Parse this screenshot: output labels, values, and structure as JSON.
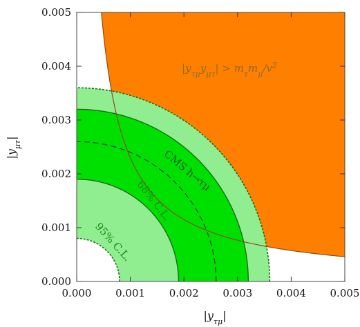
{
  "chart_data": {
    "type": "area",
    "title": "",
    "xlabel": "|y_τμ|",
    "ylabel": "|y_μτ|",
    "xlim": [
      0,
      0.005
    ],
    "ylim": [
      0,
      0.005
    ],
    "x_ticks": [
      "0.000",
      "0.001",
      "0.002",
      "0.003",
      "0.004",
      "0.005"
    ],
    "y_ticks": [
      "0.000",
      "0.001",
      "0.002",
      "0.003",
      "0.004",
      "0.005"
    ],
    "grid": false,
    "regions": [
      {
        "name": "95% C.L.",
        "kind": "annulus",
        "inner_radius": 0.0008,
        "outer_radius": 0.0036,
        "color": "#90ee90",
        "label": "95% C.L."
      },
      {
        "name": "68% C.L.",
        "kind": "annulus",
        "inner_radius": 0.0019,
        "outer_radius": 0.0032,
        "color": "#00e000",
        "label": "68% C.L."
      },
      {
        "name": "CMS best fit",
        "kind": "arc",
        "radius": 0.0026,
        "style": "dashed",
        "label": "CMS h→τμ"
      },
      {
        "name": "excluded",
        "kind": "hyperbola",
        "product": 2.3e-06,
        "color": "#ff7f00",
        "label": "|y_τμ y_μτ| > m_τ m_μ/v²"
      }
    ]
  },
  "labels": {
    "xlabel_main": "|y",
    "xlabel_sub": "τμ",
    "xlabel_end": "|",
    "ylabel_main": "|y",
    "ylabel_sub": "μτ",
    "ylabel_end": "|",
    "cms_label": "CMS h→τμ",
    "cl68_label": "68% C.L.",
    "cl95_label": "95% C.L.",
    "excl_p1": "|y",
    "excl_s1": "τμ",
    "excl_p2": "y",
    "excl_s2": "μτ",
    "excl_p3": "| > m",
    "excl_s3": "τ",
    "excl_p4": "m",
    "excl_s4": "μ",
    "excl_p5": "/v",
    "excl_sup": "2"
  },
  "colors": {
    "cl95": "#90ee90",
    "cl68": "#00e000",
    "excluded": "#ff7f00",
    "edge_dark": "#1a6b1a",
    "region_text": "#1a8a1a",
    "excl_text": "#8a6a2a"
  }
}
